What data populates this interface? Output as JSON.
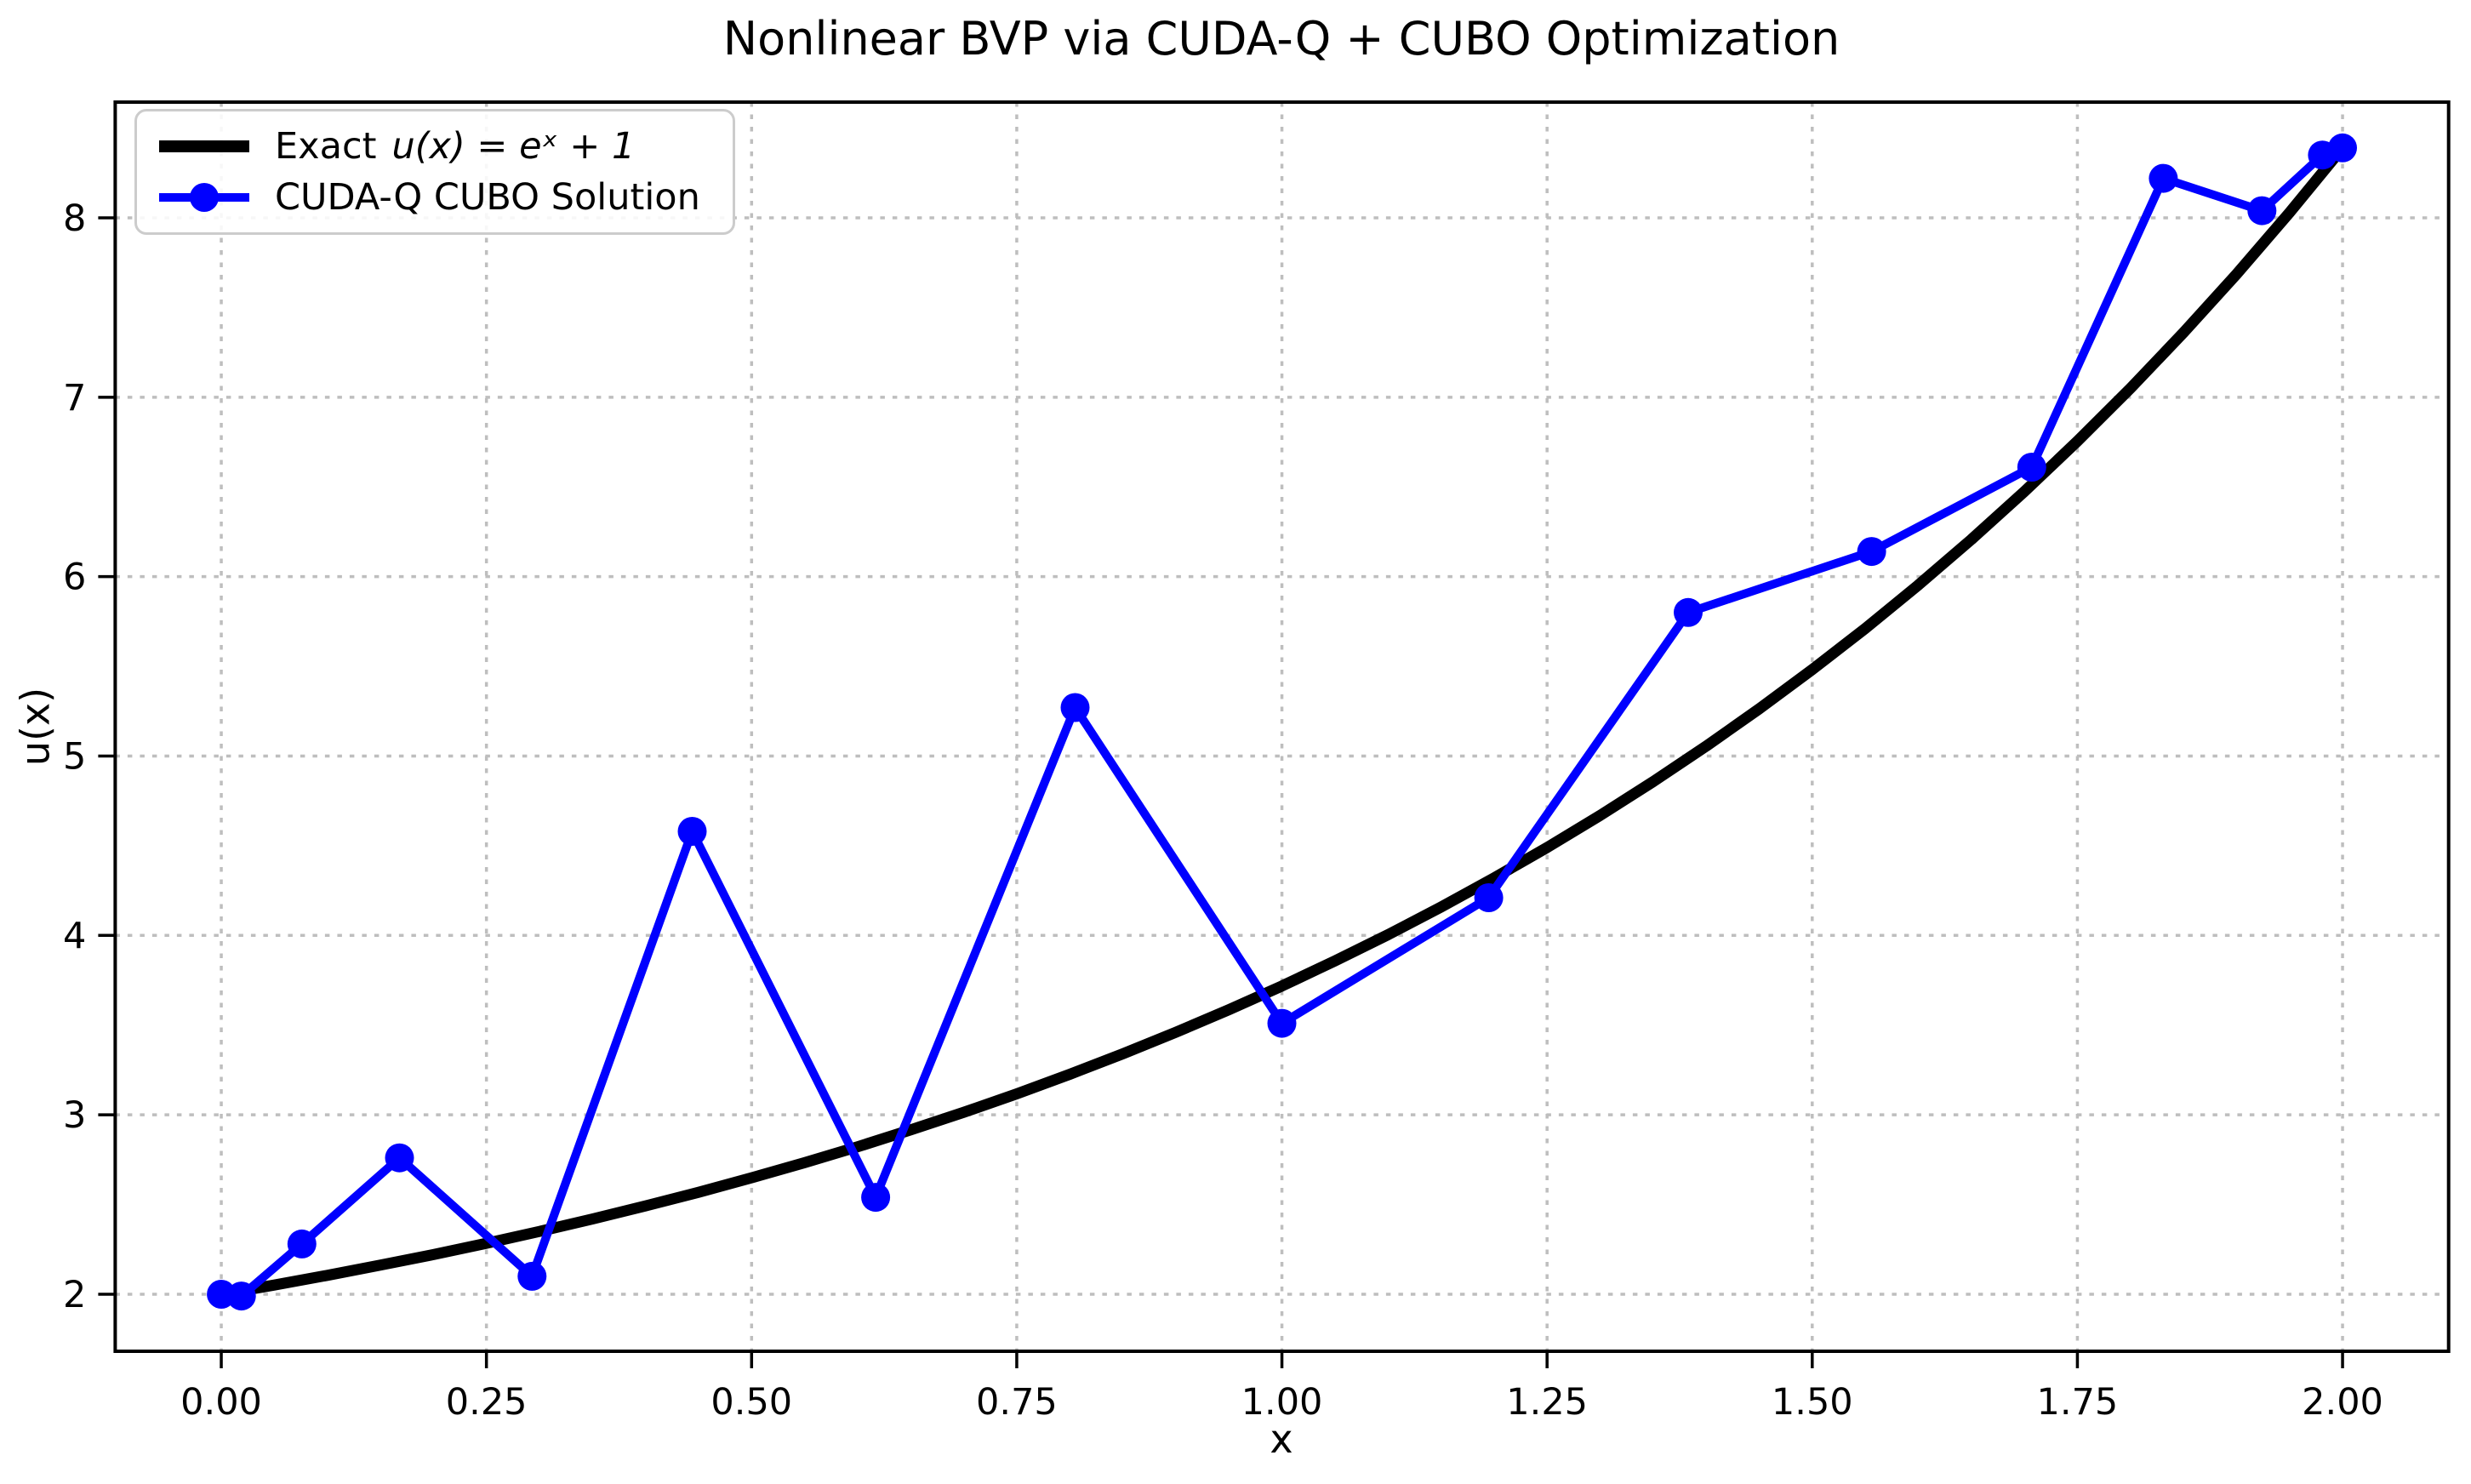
{
  "chart_data": {
    "type": "line",
    "title": "Nonlinear BVP via CUDA-Q + CUBO Optimization",
    "xlabel": "x",
    "ylabel": "u(x)",
    "xlim": [
      -0.1,
      2.1
    ],
    "ylim": [
      1.682,
      8.645
    ],
    "grid": true,
    "legend_position": "upper-left",
    "colors": {
      "exact": "#000000",
      "solution": "#0000ff",
      "grid": "#bebebe",
      "axes": "#000000",
      "legend_border": "#cccccc"
    },
    "xticks": [
      0.0,
      0.25,
      0.5,
      0.75,
      1.0,
      1.25,
      1.5,
      1.75,
      2.0
    ],
    "xtick_labels": [
      "0.00",
      "0.25",
      "0.50",
      "0.75",
      "1.00",
      "1.25",
      "1.50",
      "1.75",
      "2.00"
    ],
    "yticks": [
      2,
      3,
      4,
      5,
      6,
      7,
      8
    ],
    "ytick_labels": [
      "2",
      "3",
      "4",
      "5",
      "6",
      "7",
      "8"
    ],
    "legend": {
      "items": [
        {
          "prefix": "Exact",
          "math": "u(x) = eˣ + 1"
        },
        {
          "label": "CUDA-Q CUBO Solution"
        }
      ]
    },
    "series": [
      {
        "name": "Exact u(x) = e^x + 1",
        "color": "#000000",
        "line_width": 13,
        "marker": "none",
        "x": [
          0.0,
          0.05,
          0.1,
          0.15,
          0.2,
          0.25,
          0.3,
          0.35,
          0.4,
          0.45,
          0.5,
          0.55,
          0.6,
          0.65,
          0.7,
          0.75,
          0.8,
          0.85,
          0.9,
          0.95,
          1.0,
          1.05,
          1.1,
          1.15,
          1.2,
          1.25,
          1.3,
          1.35,
          1.4,
          1.45,
          1.5,
          1.55,
          1.6,
          1.65,
          1.7,
          1.75,
          1.8,
          1.85,
          1.9,
          1.95,
          2.0
        ],
        "y": [
          2.0,
          2.051,
          2.105,
          2.162,
          2.221,
          2.284,
          2.35,
          2.419,
          2.492,
          2.568,
          2.649,
          2.733,
          2.822,
          2.916,
          3.014,
          3.117,
          3.226,
          3.34,
          3.46,
          3.586,
          3.718,
          3.858,
          4.004,
          4.158,
          4.32,
          4.49,
          4.669,
          4.857,
          5.055,
          5.263,
          5.482,
          5.711,
          5.953,
          6.207,
          6.474,
          6.755,
          7.05,
          7.36,
          7.686,
          8.029,
          8.389
        ]
      },
      {
        "name": "CUDA-Q CUBO Solution",
        "color": "#0000ff",
        "line_width": 10,
        "marker": "circle",
        "marker_radius": 17,
        "x": [
          0.0,
          0.019,
          0.076,
          0.168,
          0.293,
          0.444,
          0.617,
          0.805,
          1.0,
          1.195,
          1.383,
          1.556,
          1.707,
          1.831,
          1.924,
          1.981,
          2.0
        ],
        "y": [
          2.0,
          1.99,
          2.28,
          2.76,
          2.1,
          4.58,
          2.54,
          5.27,
          3.51,
          4.21,
          5.8,
          6.14,
          6.61,
          8.22,
          8.04,
          8.35,
          8.39
        ]
      }
    ]
  }
}
